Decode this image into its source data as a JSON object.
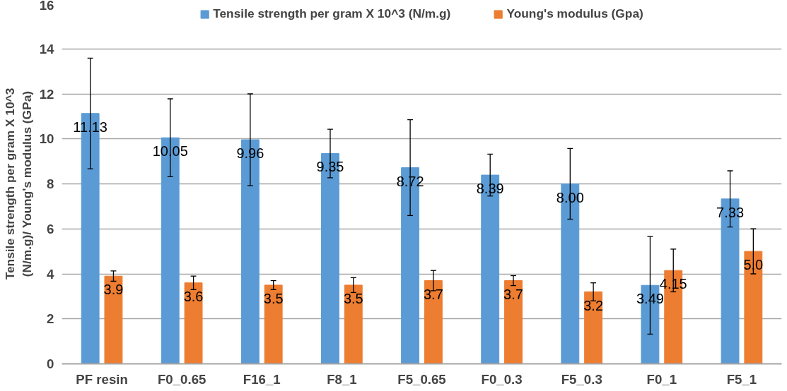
{
  "chart_data": {
    "type": "bar",
    "ylabel": "Tensile strength per gram X 10^3\n(N/m.g)/ Young's modulus (GPa)",
    "categories": [
      "PF resin",
      "F0_0.65",
      "F16_1",
      "F8_1",
      "F5_0.65",
      "F0_0.3",
      "F5_0.3",
      "F0_1",
      "F5_1"
    ],
    "series": [
      {
        "name": "Tensile strength per gram X 10^3 (N/m.g)",
        "color": "#5b9bd5",
        "values": [
          11.13,
          10.05,
          9.96,
          9.35,
          8.72,
          8.39,
          8.0,
          3.49,
          7.33
        ],
        "errors": [
          2.46,
          1.73,
          2.04,
          1.08,
          2.13,
          0.93,
          1.57,
          2.17,
          1.25
        ],
        "value_labels": [
          "11.13",
          "10.05",
          "9.96",
          "9.35",
          "8.72",
          "8.39",
          "8.00",
          "3.49",
          "7.33"
        ]
      },
      {
        "name": "Young's modulus (Gpa)",
        "color": "#ed7d31",
        "values": [
          3.9,
          3.6,
          3.5,
          3.5,
          3.7,
          3.7,
          3.2,
          4.15,
          5.0
        ],
        "errors": [
          0.23,
          0.3,
          0.2,
          0.33,
          0.45,
          0.22,
          0.4,
          0.95,
          1.0
        ],
        "value_labels": [
          "3.9",
          "3.6",
          "3.5",
          "3.5",
          "3.7",
          "3.7",
          "3.2",
          "4.15",
          "5.0"
        ]
      }
    ],
    "ylim": [
      0,
      16
    ],
    "yticks": [
      0,
      2,
      4,
      6,
      8,
      10,
      12,
      14,
      16
    ],
    "grid": "y",
    "legend": "top"
  }
}
